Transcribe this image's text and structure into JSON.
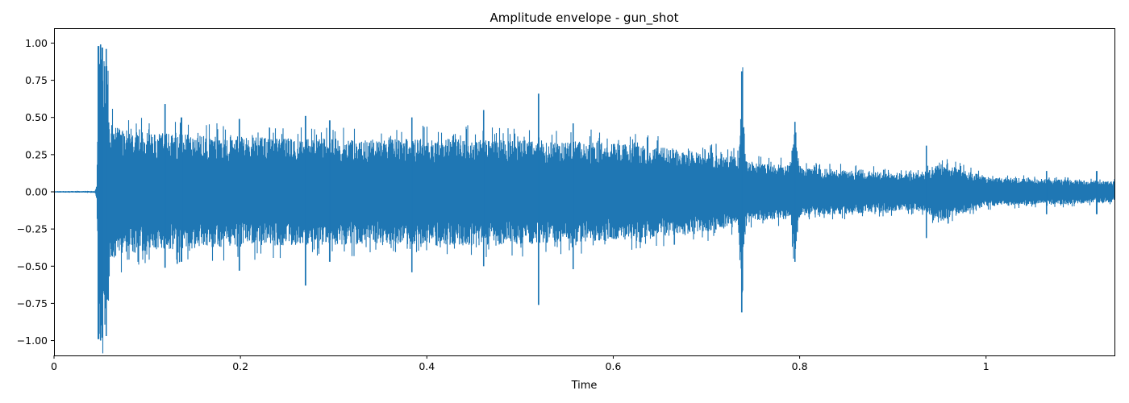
{
  "chart_data": {
    "type": "line",
    "title": "Amplitude envelope - gun_shot",
    "xlabel": "Time",
    "ylabel": "",
    "xlim": [
      0,
      1.1378
    ],
    "ylim": [
      -1.1,
      1.1
    ],
    "xticks": [
      0,
      0.2,
      0.4,
      0.6,
      0.8,
      1
    ],
    "xtick_labels": [
      "0",
      "0.2",
      "0.4",
      "0.6",
      "0.8",
      "1"
    ],
    "yticks": [
      -1.0,
      -0.75,
      -0.5,
      -0.25,
      0.0,
      0.25,
      0.5,
      0.75,
      1.0
    ],
    "ytick_labels": [
      "−1.00",
      "−0.75",
      "−0.50",
      "−0.25",
      "0.00",
      "0.25",
      "0.50",
      "0.75",
      "1.00"
    ],
    "grid": false,
    "series": [
      {
        "color": "#1f77b4",
        "envelope": {
          "time": [
            0,
            0.044,
            0.046,
            0.048,
            0.05,
            0.052,
            0.054,
            0.056,
            0.058,
            0.06,
            0.065,
            0.07,
            0.08,
            0.1,
            0.12,
            0.15,
            0.2,
            0.25,
            0.3,
            0.35,
            0.4,
            0.45,
            0.5,
            0.55,
            0.6,
            0.65,
            0.7,
            0.72,
            0.735,
            0.738,
            0.742,
            0.75,
            0.79,
            0.795,
            0.8,
            0.85,
            0.9,
            0.93,
            0.95,
            1.0,
            1.05,
            1.1,
            1.1378
          ],
          "amplitude": [
            0.005,
            0.006,
            0.05,
            0.98,
            0.99,
            0.95,
            0.92,
            0.96,
            0.85,
            0.45,
            0.45,
            0.44,
            0.42,
            0.4,
            0.4,
            0.38,
            0.37,
            0.36,
            0.36,
            0.35,
            0.36,
            0.36,
            0.35,
            0.34,
            0.33,
            0.3,
            0.27,
            0.25,
            0.23,
            0.81,
            0.22,
            0.2,
            0.18,
            0.47,
            0.16,
            0.15,
            0.13,
            0.12,
            0.2,
            0.1,
            0.09,
            0.08,
            0.07
          ]
        },
        "spikes": [
          {
            "time": 0.048,
            "max": 0.98,
            "min": -0.99
          },
          {
            "time": 0.05,
            "max": 0.99,
            "min": -1.0
          },
          {
            "time": 0.052,
            "max": 0.97,
            "min": -0.98
          },
          {
            "time": 0.056,
            "max": 0.96,
            "min": -0.97
          },
          {
            "time": 0.119,
            "max": 0.59,
            "min": -0.51
          },
          {
            "time": 0.137,
            "max": 0.5,
            "min": -0.47
          },
          {
            "time": 0.199,
            "max": 0.49,
            "min": -0.53
          },
          {
            "time": 0.27,
            "max": 0.51,
            "min": -0.63
          },
          {
            "time": 0.296,
            "max": 0.48,
            "min": -0.47
          },
          {
            "time": 0.384,
            "max": 0.5,
            "min": -0.54
          },
          {
            "time": 0.461,
            "max": 0.55,
            "min": -0.5
          },
          {
            "time": 0.52,
            "max": 0.66,
            "min": -0.76
          },
          {
            "time": 0.557,
            "max": 0.46,
            "min": -0.52
          },
          {
            "time": 0.738,
            "max": 0.81,
            "min": -0.81
          },
          {
            "time": 0.795,
            "max": 0.47,
            "min": -0.47
          },
          {
            "time": 0.936,
            "max": 0.31,
            "min": -0.31
          },
          {
            "time": 1.065,
            "max": 0.14,
            "min": -0.15
          },
          {
            "time": 1.119,
            "max": 0.14,
            "min": -0.15
          }
        ]
      }
    ]
  }
}
